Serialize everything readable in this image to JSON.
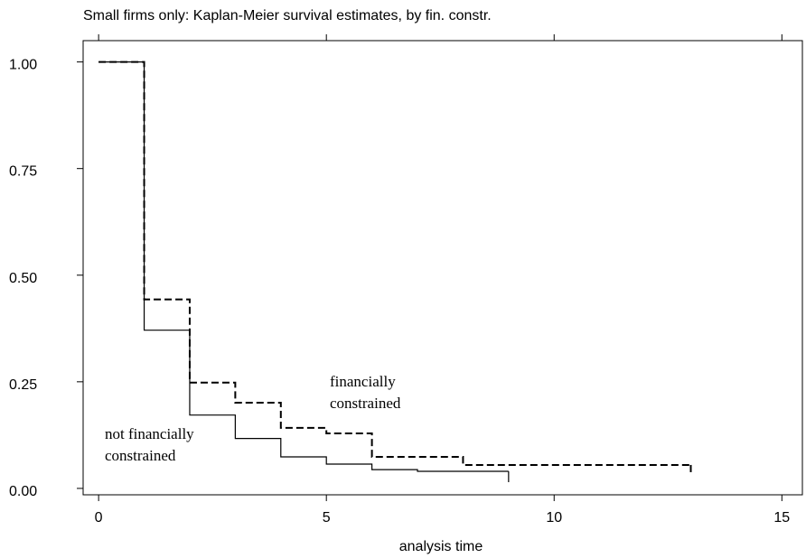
{
  "chart_data": {
    "type": "step",
    "title": "Small firms only: Kaplan-Meier survival estimates, by fin. constr.",
    "x_label": "analysis time",
    "xlim": [
      -0.34,
      15.45
    ],
    "xticks": [
      0,
      5,
      10,
      15
    ],
    "ylim": [
      -0.015,
      1.05
    ],
    "yticks": [
      {
        "value": 0,
        "label": "0.00"
      },
      {
        "value": 0.25,
        "label": "0.25"
      },
      {
        "value": 0.5,
        "label": "0.50"
      },
      {
        "value": 0.75,
        "label": "0.75"
      },
      {
        "value": 1,
        "label": "1.00"
      }
    ],
    "series": [
      {
        "color": "#000",
        "dashed": true,
        "x": [
          0,
          1,
          2,
          3,
          4,
          5,
          6,
          8,
          13
        ],
        "values": [
          1,
          0.443,
          0.248,
          0.201,
          0.142,
          0.129,
          0.074,
          0.055,
          0.055
        ]
      },
      {
        "color": "#000",
        "dashed": false,
        "x": [
          0,
          1,
          2,
          3,
          4,
          5,
          6,
          7,
          9
        ],
        "values": [
          1,
          0.371,
          0.172,
          0.117,
          0.074,
          0.057,
          0.044,
          0.04,
          0.04
        ]
      }
    ],
    "annotations": [
      {
        "lines": [
          "financially",
          "constrained"
        ]
      },
      {
        "lines": [
          "not financially",
          "constrained"
        ]
      }
    ]
  }
}
